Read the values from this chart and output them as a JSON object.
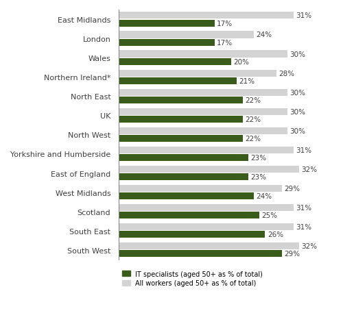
{
  "categories": [
    "South West",
    "South East",
    "Scotland",
    "West Midlands",
    "East of England",
    "Yorkshire and Humberside",
    "North West",
    "UK",
    "North East",
    "Northern Ireland*",
    "Wales",
    "London",
    "East Midlands"
  ],
  "it_specialists": [
    29,
    26,
    25,
    24,
    23,
    23,
    22,
    22,
    22,
    21,
    20,
    17,
    17
  ],
  "all_workers": [
    32,
    31,
    31,
    29,
    32,
    31,
    30,
    30,
    30,
    28,
    30,
    24,
    31
  ],
  "it_color": "#3a5c1a",
  "all_color": "#d3d3d3",
  "text_color": "#404040",
  "label_color": "#404040",
  "legend_it": "IT specialists (aged 50+ as % of total)",
  "legend_all": "All workers (aged 50+ as % of total)",
  "xlim": [
    0,
    38
  ],
  "bar_height": 0.36,
  "bg_color": "#ffffff",
  "font_size_labels": 8.0,
  "font_size_bar_labels": 7.5
}
